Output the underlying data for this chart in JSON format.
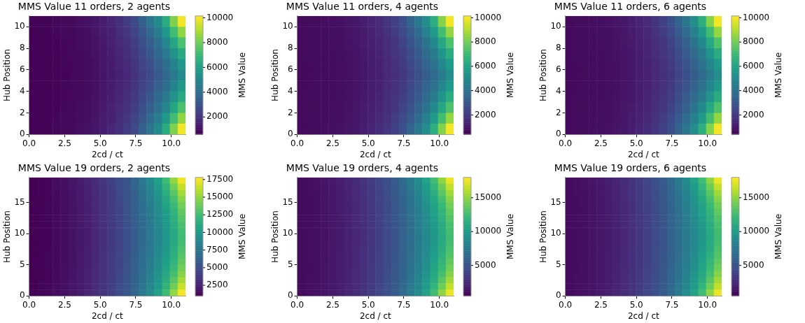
{
  "chart_data": [
    {
      "type": "heatmap",
      "title": "MMS Value 11 orders, 2 agents",
      "xlabel": "2cd / ct",
      "ylabel": "Hub Position",
      "clabel": "MMS Value",
      "xlim": [
        0,
        11
      ],
      "xticks": [
        {
          "value": 0,
          "label": "0.0"
        },
        {
          "value": 2.5,
          "label": "2.5"
        },
        {
          "value": 5,
          "label": "5.0"
        },
        {
          "value": 7.5,
          "label": "7.5"
        },
        {
          "value": 10,
          "label": "10.0"
        }
      ],
      "ylim": [
        0,
        11
      ],
      "yticks": [
        0,
        2,
        4,
        6,
        8,
        10
      ],
      "clim": [
        600,
        10150
      ],
      "cticks": [
        2000,
        4000,
        6000,
        8000,
        10000
      ],
      "cells": [
        [
          660,
          680,
          700,
          750,
          800,
          850,
          950,
          1050,
          1200,
          1400,
          1600,
          1900,
          2300,
          2800,
          3500,
          4300,
          5200,
          6500,
          8300,
          10000
        ],
        [
          660,
          670,
          690,
          730,
          780,
          820,
          910,
          1010,
          1140,
          1330,
          1510,
          1780,
          2120,
          2560,
          3170,
          3850,
          4630,
          5690,
          7160,
          8560
        ],
        [
          660,
          670,
          680,
          720,
          760,
          800,
          880,
          970,
          1090,
          1260,
          1440,
          1680,
          1970,
          2360,
          2900,
          3480,
          4160,
          5020,
          6210,
          7360
        ],
        [
          650,
          670,
          680,
          710,
          740,
          780,
          850,
          940,
          1050,
          1210,
          1380,
          1600,
          1850,
          2200,
          2680,
          3180,
          3780,
          4480,
          5450,
          6400
        ],
        [
          650,
          660,
          670,
          700,
          730,
          770,
          830,
          920,
          1020,
          1180,
          1330,
          1540,
          1760,
          2080,
          2510,
          2950,
          3490,
          4070,
          4880,
          5680
        ],
        [
          650,
          660,
          670,
          690,
          720,
          760,
          820,
          900,
          1000,
          1150,
          1300,
          1500,
          1700,
          2000,
          2400,
          2800,
          3300,
          3800,
          4500,
          5200
        ],
        [
          650,
          660,
          670,
          700,
          730,
          770,
          830,
          920,
          1020,
          1180,
          1330,
          1540,
          1760,
          2080,
          2510,
          2950,
          3490,
          4070,
          4880,
          5680
        ],
        [
          650,
          670,
          680,
          710,
          740,
          780,
          850,
          940,
          1050,
          1210,
          1380,
          1600,
          1850,
          2200,
          2680,
          3180,
          3780,
          4480,
          5450,
          6400
        ],
        [
          660,
          670,
          680,
          720,
          760,
          800,
          880,
          970,
          1090,
          1260,
          1440,
          1680,
          1970,
          2360,
          2900,
          3480,
          4160,
          5020,
          6210,
          7360
        ],
        [
          660,
          670,
          690,
          730,
          780,
          820,
          910,
          1010,
          1140,
          1330,
          1510,
          1780,
          2120,
          2560,
          3170,
          3850,
          4630,
          5690,
          7160,
          8560
        ],
        [
          660,
          680,
          700,
          750,
          800,
          850,
          950,
          1050,
          1200,
          1400,
          1600,
          1900,
          2300,
          2800,
          3500,
          4300,
          5200,
          6500,
          8300,
          10000
        ]
      ]
    },
    {
      "type": "heatmap",
      "title": "MMS Value 11 orders, 4 agents",
      "xlabel": "2cd / ct",
      "ylabel": "Hub Position",
      "clabel": "MMS Value",
      "xlim": [
        0,
        11
      ],
      "xticks": [
        {
          "value": 0,
          "label": "0.0"
        },
        {
          "value": 2.5,
          "label": "2.5"
        },
        {
          "value": 5,
          "label": "5.0"
        },
        {
          "value": 7.5,
          "label": "7.5"
        },
        {
          "value": 10,
          "label": "10.0"
        }
      ],
      "ylim": [
        0,
        11
      ],
      "yticks": [
        0,
        2,
        4,
        6,
        8,
        10
      ],
      "clim": [
        400,
        10150
      ],
      "cticks": [
        2000,
        4000,
        6000,
        8000,
        10000
      ],
      "cells": [
        [
          660,
          680,
          700,
          750,
          800,
          850,
          950,
          1050,
          1200,
          1400,
          1600,
          1900,
          2300,
          2800,
          3500,
          4300,
          5200,
          6500,
          8300,
          10000
        ],
        [
          660,
          670,
          690,
          730,
          780,
          820,
          910,
          1010,
          1140,
          1330,
          1510,
          1780,
          2120,
          2560,
          3170,
          3850,
          4630,
          5690,
          7160,
          8560
        ],
        [
          660,
          670,
          680,
          720,
          760,
          800,
          880,
          970,
          1090,
          1260,
          1440,
          1680,
          1970,
          2360,
          2900,
          3480,
          4160,
          5020,
          6210,
          7360
        ],
        [
          650,
          670,
          680,
          710,
          740,
          780,
          850,
          940,
          1050,
          1210,
          1380,
          1600,
          1850,
          2200,
          2680,
          3180,
          3780,
          4480,
          5450,
          6400
        ],
        [
          650,
          660,
          670,
          700,
          730,
          770,
          830,
          920,
          1020,
          1180,
          1330,
          1540,
          1760,
          2080,
          2510,
          2950,
          3490,
          4070,
          4880,
          5680
        ],
        [
          650,
          660,
          670,
          690,
          720,
          760,
          820,
          900,
          1000,
          1150,
          1300,
          1500,
          1700,
          2000,
          2400,
          2800,
          3300,
          3800,
          4500,
          5200
        ],
        [
          650,
          660,
          670,
          700,
          730,
          770,
          830,
          920,
          1020,
          1180,
          1330,
          1540,
          1760,
          2080,
          2510,
          2950,
          3490,
          4070,
          4880,
          5680
        ],
        [
          650,
          670,
          680,
          710,
          740,
          780,
          850,
          940,
          1050,
          1210,
          1380,
          1600,
          1850,
          2200,
          2680,
          3180,
          3780,
          4480,
          5450,
          6400
        ],
        [
          660,
          670,
          680,
          720,
          760,
          800,
          880,
          970,
          1090,
          1260,
          1440,
          1680,
          1970,
          2360,
          2900,
          3480,
          4160,
          5020,
          6210,
          7360
        ],
        [
          660,
          670,
          690,
          730,
          780,
          820,
          910,
          1010,
          1140,
          1330,
          1510,
          1780,
          2120,
          2560,
          3170,
          3850,
          4630,
          5690,
          7160,
          8560
        ],
        [
          660,
          680,
          700,
          750,
          800,
          850,
          950,
          1050,
          1200,
          1400,
          1600,
          1900,
          2300,
          2800,
          3500,
          4300,
          5200,
          6500,
          8300,
          10000
        ]
      ]
    },
    {
      "type": "heatmap",
      "title": "MMS Value 11 orders, 6 agents",
      "xlabel": "2cd / ct",
      "ylabel": "Hub Position",
      "clabel": "MMS Value",
      "xlim": [
        0,
        11
      ],
      "xticks": [
        {
          "value": 0,
          "label": "0.0"
        },
        {
          "value": 2.5,
          "label": "2.5"
        },
        {
          "value": 5,
          "label": "5.0"
        },
        {
          "value": 7.5,
          "label": "7.5"
        },
        {
          "value": 10,
          "label": "10.0"
        }
      ],
      "ylim": [
        0,
        11
      ],
      "yticks": [
        0,
        2,
        4,
        6,
        8,
        10
      ],
      "clim": [
        400,
        10150
      ],
      "cticks": [
        2000,
        4000,
        6000,
        8000,
        10000
      ],
      "cells": [
        [
          660,
          680,
          700,
          750,
          800,
          850,
          950,
          1050,
          1200,
          1400,
          1600,
          1900,
          2300,
          2800,
          3500,
          4300,
          5200,
          6500,
          8300,
          10000
        ],
        [
          660,
          670,
          690,
          730,
          780,
          820,
          910,
          1010,
          1140,
          1330,
          1510,
          1780,
          2120,
          2560,
          3170,
          3850,
          4630,
          5690,
          7160,
          8560
        ],
        [
          660,
          670,
          680,
          720,
          760,
          800,
          880,
          970,
          1090,
          1260,
          1440,
          1680,
          1970,
          2360,
          2900,
          3480,
          4160,
          5020,
          6210,
          7360
        ],
        [
          650,
          670,
          680,
          710,
          740,
          780,
          850,
          940,
          1050,
          1210,
          1380,
          1600,
          1850,
          2200,
          2680,
          3180,
          3780,
          4480,
          5450,
          6400
        ],
        [
          650,
          660,
          670,
          700,
          730,
          770,
          830,
          920,
          1020,
          1180,
          1330,
          1540,
          1760,
          2080,
          2510,
          2950,
          3490,
          4070,
          4880,
          5680
        ],
        [
          650,
          660,
          670,
          690,
          720,
          760,
          820,
          900,
          1000,
          1150,
          1300,
          1500,
          1700,
          2000,
          2400,
          2800,
          3300,
          3800,
          4500,
          5200
        ],
        [
          650,
          660,
          670,
          700,
          730,
          770,
          830,
          920,
          1020,
          1180,
          1330,
          1540,
          1760,
          2080,
          2510,
          2950,
          3490,
          4070,
          4880,
          5680
        ],
        [
          650,
          670,
          680,
          710,
          740,
          780,
          850,
          940,
          1050,
          1210,
          1380,
          1600,
          1850,
          2200,
          2680,
          3180,
          3780,
          4480,
          5450,
          6400
        ],
        [
          660,
          670,
          680,
          720,
          760,
          800,
          880,
          970,
          1090,
          1260,
          1440,
          1680,
          1970,
          2360,
          2900,
          3480,
          4160,
          5020,
          6210,
          7360
        ],
        [
          660,
          670,
          690,
          730,
          780,
          820,
          910,
          1010,
          1140,
          1330,
          1510,
          1780,
          2120,
          2560,
          3170,
          3850,
          4630,
          5690,
          7160,
          8560
        ],
        [
          660,
          680,
          700,
          750,
          800,
          850,
          950,
          1050,
          1200,
          1400,
          1600,
          1900,
          2300,
          2800,
          3500,
          4300,
          5200,
          6500,
          8300,
          10000
        ]
      ]
    },
    {
      "type": "heatmap",
      "title": "MMS Value 19 orders, 2 agents",
      "xlabel": "2cd / ct",
      "ylabel": "Hub Position",
      "clabel": "MMS Value",
      "xlim": [
        0,
        11
      ],
      "xticks": [
        {
          "value": 0,
          "label": "0.0"
        },
        {
          "value": 2.5,
          "label": "2.5"
        },
        {
          "value": 5,
          "label": "5.0"
        },
        {
          "value": 7.5,
          "label": "7.5"
        },
        {
          "value": 10,
          "label": "10.0"
        }
      ],
      "ylim": [
        0,
        19
      ],
      "yticks": [
        0,
        5,
        10,
        15
      ],
      "clim": [
        1000,
        17800
      ],
      "cticks": [
        2500,
        5000,
        7500,
        10000,
        12500,
        15000,
        17500
      ],
      "cells": [
        [
          1050,
          1150,
          1300,
          1500,
          1700,
          2000,
          2300,
          2700,
          3100,
          3600,
          4200,
          4800,
          5500,
          6500,
          7800,
          9000,
          10500,
          12500,
          15000,
          17500
        ],
        [
          1050,
          1140,
          1280,
          1470,
          1670,
          1960,
          2260,
          2630,
          3030,
          3530,
          4110,
          4710,
          5410,
          6370,
          7580,
          8710,
          10100,
          11910,
          14120,
          16400
        ],
        [
          1050,
          1130,
          1260,
          1440,
          1640,
          1920,
          2220,
          2580,
          2980,
          3480,
          4040,
          4640,
          5340,
          6260,
          7400,
          8480,
          9780,
          11420,
          13400,
          15500
        ],
        [
          1050,
          1120,
          1250,
          1420,
          1620,
          1890,
          2190,
          2540,
          2940,
          3440,
          3980,
          4580,
          5280,
          6170,
          7250,
          8290,
          9510,
          11020,
          12800,
          14750
        ],
        [
          1050,
          1120,
          1230,
          1400,
          1600,
          1870,
          2170,
          2500,
          2900,
          3400,
          3930,
          4530,
          5230,
          6100,
          7130,
          8130,
          9290,
          10690,
          12320,
          14150
        ],
        [
          1050,
          1110,
          1220,
          1390,
          1590,
          1850,
          2150,
          2470,
          2870,
          3370,
          3890,
          4490,
          5190,
          6040,
          7030,
          8000,
          9110,
          10420,
          11920,
          13650
        ],
        [
          1050,
          1110,
          1220,
          1370,
          1570,
          1830,
          2130,
          2450,
          2850,
          3350,
          3860,
          4460,
          5160,
          5990,
          6950,
          7900,
          8970,
          10210,
          11600,
          13250
        ],
        [
          1050,
          1100,
          1210,
          1360,
          1560,
          1820,
          2120,
          2420,
          2820,
          3320,
          3830,
          4430,
          5130,
          5950,
          6880,
          7800,
          8840,
          10020,
          11320,
          12900
        ],
        [
          1050,
          1100,
          1200,
          1350,
          1550,
          1810,
          2110,
          2410,
          2810,
          3310,
          3810,
          4410,
          5110,
          5920,
          6830,
          7740,
          8750,
          9880,
          11120,
          12650
        ],
        [
          1050,
          1100,
          1200,
          1350,
          1550,
          1800,
          2100,
          2400,
          2800,
          3300,
          3800,
          4400,
          5100,
          5900,
          6800,
          7700,
          8700,
          9800,
          11000,
          12500
        ],
        [
          1050,
          1100,
          1200,
          1350,
          1550,
          1810,
          2110,
          2410,
          2810,
          3310,
          3810,
          4410,
          5110,
          5920,
          6830,
          7740,
          8750,
          9880,
          11120,
          12650
        ],
        [
          1050,
          1100,
          1210,
          1360,
          1560,
          1820,
          2120,
          2420,
          2820,
          3320,
          3830,
          4430,
          5130,
          5950,
          6880,
          7800,
          8840,
          10020,
          11320,
          12900
        ],
        [
          1050,
          1110,
          1220,
          1370,
          1570,
          1830,
          2130,
          2450,
          2850,
          3350,
          3860,
          4460,
          5160,
          5990,
          6950,
          7900,
          8970,
          10210,
          11600,
          13250
        ],
        [
          1050,
          1110,
          1220,
          1390,
          1590,
          1850,
          2150,
          2470,
          2870,
          3370,
          3890,
          4490,
          5190,
          6040,
          7030,
          8000,
          9110,
          10420,
          11920,
          13650
        ],
        [
          1050,
          1120,
          1230,
          1400,
          1600,
          1870,
          2170,
          2500,
          2900,
          3400,
          3930,
          4530,
          5230,
          6100,
          7130,
          8130,
          9290,
          10690,
          12320,
          14150
        ],
        [
          1050,
          1120,
          1250,
          1420,
          1620,
          1890,
          2190,
          2540,
          2940,
          3440,
          3980,
          4580,
          5280,
          6170,
          7250,
          8290,
          9510,
          11020,
          12800,
          14750
        ],
        [
          1050,
          1130,
          1260,
          1440,
          1640,
          1920,
          2220,
          2580,
          2980,
          3480,
          4040,
          4640,
          5340,
          6260,
          7400,
          8480,
          9780,
          11420,
          13400,
          15500
        ],
        [
          1050,
          1140,
          1280,
          1470,
          1670,
          1960,
          2260,
          2630,
          3030,
          3530,
          4110,
          4710,
          5410,
          6370,
          7580,
          8710,
          10100,
          11910,
          14120,
          16400
        ],
        [
          1050,
          1150,
          1300,
          1500,
          1700,
          2000,
          2300,
          2700,
          3100,
          3600,
          4200,
          4800,
          5500,
          6500,
          7800,
          9000,
          10500,
          12500,
          15000,
          17500
        ]
      ]
    },
    {
      "type": "heatmap",
      "title": "MMS Value 19 orders, 4 agents",
      "xlabel": "2cd / ct",
      "ylabel": "Hub Position",
      "clabel": "MMS Value",
      "xlim": [
        0,
        11
      ],
      "xticks": [
        {
          "value": 0,
          "label": "0.0"
        },
        {
          "value": 2.5,
          "label": "2.5"
        },
        {
          "value": 5,
          "label": "5.0"
        },
        {
          "value": 7.5,
          "label": "7.5"
        },
        {
          "value": 10,
          "label": "10.0"
        }
      ],
      "ylim": [
        0,
        19
      ],
      "yticks": [
        0,
        5,
        10,
        15
      ],
      "clim": [
        500,
        18000
      ],
      "cticks": [
        5000,
        10000,
        15000
      ],
      "cells": [
        [
          1050,
          1150,
          1300,
          1500,
          1700,
          2000,
          2300,
          2700,
          3100,
          3600,
          4200,
          4800,
          5500,
          6500,
          7800,
          9000,
          10500,
          12500,
          15000,
          17500
        ],
        [
          1050,
          1140,
          1280,
          1470,
          1670,
          1960,
          2260,
          2630,
          3030,
          3530,
          4110,
          4710,
          5410,
          6370,
          7580,
          8710,
          10100,
          11910,
          14120,
          16400
        ],
        [
          1050,
          1130,
          1260,
          1440,
          1640,
          1920,
          2220,
          2580,
          2980,
          3480,
          4040,
          4640,
          5340,
          6260,
          7400,
          8480,
          9780,
          11420,
          13400,
          15500
        ],
        [
          1050,
          1120,
          1250,
          1420,
          1620,
          1890,
          2190,
          2540,
          2940,
          3440,
          3980,
          4580,
          5280,
          6170,
          7250,
          8290,
          9510,
          11020,
          12800,
          14750
        ],
        [
          1050,
          1120,
          1230,
          1400,
          1600,
          1870,
          2170,
          2500,
          2900,
          3400,
          3930,
          4530,
          5230,
          6100,
          7130,
          8130,
          9290,
          10690,
          12320,
          14150
        ],
        [
          1050,
          1110,
          1220,
          1390,
          1590,
          1850,
          2150,
          2470,
          2870,
          3370,
          3890,
          4490,
          5190,
          6040,
          7030,
          8000,
          9110,
          10420,
          11920,
          13650
        ],
        [
          1050,
          1110,
          1220,
          1370,
          1570,
          1830,
          2130,
          2450,
          2850,
          3350,
          3860,
          4460,
          5160,
          5990,
          6950,
          7900,
          8970,
          10210,
          11600,
          13250
        ],
        [
          1050,
          1100,
          1210,
          1360,
          1560,
          1820,
          2120,
          2420,
          2820,
          3320,
          3830,
          4430,
          5130,
          5950,
          6880,
          7800,
          8840,
          10020,
          11320,
          12900
        ],
        [
          1050,
          1100,
          1200,
          1350,
          1550,
          1810,
          2110,
          2410,
          2810,
          3310,
          3810,
          4410,
          5110,
          5920,
          6830,
          7740,
          8750,
          9880,
          11120,
          12650
        ],
        [
          1050,
          1100,
          1200,
          1350,
          1550,
          1800,
          2100,
          2400,
          2800,
          3300,
          3800,
          4400,
          5100,
          5900,
          6800,
          7700,
          8700,
          9800,
          11000,
          12500
        ],
        [
          1050,
          1100,
          1200,
          1350,
          1550,
          1810,
          2110,
          2410,
          2810,
          3310,
          3810,
          4410,
          5110,
          5920,
          6830,
          7740,
          8750,
          9880,
          11120,
          12650
        ],
        [
          1050,
          1100,
          1210,
          1360,
          1560,
          1820,
          2120,
          2420,
          2820,
          3320,
          3830,
          4430,
          5130,
          5950,
          6880,
          7800,
          8840,
          10020,
          11320,
          12900
        ],
        [
          1050,
          1110,
          1220,
          1370,
          1570,
          1830,
          2130,
          2450,
          2850,
          3350,
          3860,
          4460,
          5160,
          5990,
          6950,
          7900,
          8970,
          10210,
          11600,
          13250
        ],
        [
          1050,
          1110,
          1220,
          1390,
          1590,
          1850,
          2150,
          2470,
          2870,
          3370,
          3890,
          4490,
          5190,
          6040,
          7030,
          8000,
          9110,
          10420,
          11920,
          13650
        ],
        [
          1050,
          1120,
          1230,
          1400,
          1600,
          1870,
          2170,
          2500,
          2900,
          3400,
          3930,
          4530,
          5230,
          6100,
          7130,
          8130,
          9290,
          10690,
          12320,
          14150
        ],
        [
          1050,
          1120,
          1250,
          1420,
          1620,
          1890,
          2190,
          2540,
          2940,
          3440,
          3980,
          4580,
          5280,
          6170,
          7250,
          8290,
          9510,
          11020,
          12800,
          14750
        ],
        [
          1050,
          1130,
          1260,
          1440,
          1640,
          1920,
          2220,
          2580,
          2980,
          3480,
          4040,
          4640,
          5340,
          6260,
          7400,
          8480,
          9780,
          11420,
          13400,
          15500
        ],
        [
          1050,
          1140,
          1280,
          1470,
          1670,
          1960,
          2260,
          2630,
          3030,
          3530,
          4110,
          4710,
          5410,
          6370,
          7580,
          8710,
          10100,
          11910,
          14120,
          16400
        ],
        [
          1050,
          1150,
          1300,
          1500,
          1700,
          2000,
          2300,
          2700,
          3100,
          3600,
          4200,
          4800,
          5500,
          6500,
          7800,
          9000,
          10500,
          12500,
          15000,
          17500
        ]
      ]
    },
    {
      "type": "heatmap",
      "title": "MMS Value 19 orders, 6 agents",
      "xlabel": "2cd / ct",
      "ylabel": "Hub Position",
      "clabel": "MMS Value",
      "xlim": [
        0,
        11
      ],
      "xticks": [
        {
          "value": 0,
          "label": "0.0"
        },
        {
          "value": 2.5,
          "label": "2.5"
        },
        {
          "value": 5,
          "label": "5.0"
        },
        {
          "value": 7.5,
          "label": "7.5"
        },
        {
          "value": 10,
          "label": "10.0"
        }
      ],
      "ylim": [
        0,
        19
      ],
      "yticks": [
        0,
        5,
        10,
        15
      ],
      "clim": [
        500,
        18000
      ],
      "cticks": [
        5000,
        10000,
        15000
      ],
      "cells": [
        [
          1050,
          1150,
          1300,
          1500,
          1700,
          2000,
          2300,
          2700,
          3100,
          3600,
          4200,
          4800,
          5500,
          6500,
          7800,
          9000,
          10500,
          12500,
          15000,
          17500
        ],
        [
          1050,
          1140,
          1280,
          1470,
          1670,
          1960,
          2260,
          2630,
          3030,
          3530,
          4110,
          4710,
          5410,
          6370,
          7580,
          8710,
          10100,
          11910,
          14120,
          16400
        ],
        [
          1050,
          1130,
          1260,
          1440,
          1640,
          1920,
          2220,
          2580,
          2980,
          3480,
          4040,
          4640,
          5340,
          6260,
          7400,
          8480,
          9780,
          11420,
          13400,
          15500
        ],
        [
          1050,
          1120,
          1250,
          1420,
          1620,
          1890,
          2190,
          2540,
          2940,
          3440,
          3980,
          4580,
          5280,
          6170,
          7250,
          8290,
          9510,
          11020,
          12800,
          14750
        ],
        [
          1050,
          1120,
          1230,
          1400,
          1600,
          1870,
          2170,
          2500,
          2900,
          3400,
          3930,
          4530,
          5230,
          6100,
          7130,
          8130,
          9290,
          10690,
          12320,
          14150
        ],
        [
          1050,
          1110,
          1220,
          1390,
          1590,
          1850,
          2150,
          2470,
          2870,
          3370,
          3890,
          4490,
          5190,
          6040,
          7030,
          8000,
          9110,
          10420,
          11920,
          13650
        ],
        [
          1050,
          1110,
          1220,
          1370,
          1570,
          1830,
          2130,
          2450,
          2850,
          3350,
          3860,
          4460,
          5160,
          5990,
          6950,
          7900,
          8970,
          10210,
          11600,
          13250
        ],
        [
          1050,
          1100,
          1210,
          1360,
          1560,
          1820,
          2120,
          2420,
          2820,
          3320,
          3830,
          4430,
          5130,
          5950,
          6880,
          7800,
          8840,
          10020,
          11320,
          12900
        ],
        [
          1050,
          1100,
          1200,
          1350,
          1550,
          1810,
          2110,
          2410,
          2810,
          3310,
          3810,
          4410,
          5110,
          5920,
          6830,
          7740,
          8750,
          9880,
          11120,
          12650
        ],
        [
          1050,
          1100,
          1200,
          1350,
          1550,
          1800,
          2100,
          2400,
          2800,
          3300,
          3800,
          4400,
          5100,
          5900,
          6800,
          7700,
          8700,
          9800,
          11000,
          12500
        ],
        [
          1050,
          1100,
          1200,
          1350,
          1550,
          1810,
          2110,
          2410,
          2810,
          3310,
          3810,
          4410,
          5110,
          5920,
          6830,
          7740,
          8750,
          9880,
          11120,
          12650
        ],
        [
          1050,
          1100,
          1210,
          1360,
          1560,
          1820,
          2120,
          2420,
          2820,
          3320,
          3830,
          4430,
          5130,
          5950,
          6880,
          7800,
          8840,
          10020,
          11320,
          12900
        ],
        [
          1050,
          1110,
          1220,
          1370,
          1570,
          1830,
          2130,
          2450,
          2850,
          3350,
          3860,
          4460,
          5160,
          5990,
          6950,
          7900,
          8970,
          10210,
          11600,
          13250
        ],
        [
          1050,
          1110,
          1220,
          1390,
          1590,
          1850,
          2150,
          2470,
          2870,
          3370,
          3890,
          4490,
          5190,
          6040,
          7030,
          8000,
          9110,
          10420,
          11920,
          13650
        ],
        [
          1050,
          1120,
          1230,
          1400,
          1600,
          1870,
          2170,
          2500,
          2900,
          3400,
          3930,
          4530,
          5230,
          6100,
          7130,
          8130,
          9290,
          10690,
          12320,
          14150
        ],
        [
          1050,
          1120,
          1250,
          1420,
          1620,
          1890,
          2190,
          2540,
          2940,
          3440,
          3980,
          4580,
          5280,
          6170,
          7250,
          8290,
          9510,
          11020,
          12800,
          14750
        ],
        [
          1050,
          1130,
          1260,
          1440,
          1640,
          1920,
          2220,
          2580,
          2980,
          3480,
          4040,
          4640,
          5340,
          6260,
          7400,
          8480,
          9780,
          11420,
          13400,
          15500
        ],
        [
          1050,
          1140,
          1280,
          1470,
          1670,
          1960,
          2260,
          2630,
          3030,
          3530,
          4110,
          4710,
          5410,
          6370,
          7580,
          8710,
          10100,
          11910,
          14120,
          16400
        ],
        [
          1050,
          1150,
          1300,
          1500,
          1700,
          2000,
          2300,
          2700,
          3100,
          3600,
          4200,
          4800,
          5500,
          6500,
          7800,
          9000,
          10500,
          12500,
          15000,
          17500
        ]
      ]
    }
  ]
}
